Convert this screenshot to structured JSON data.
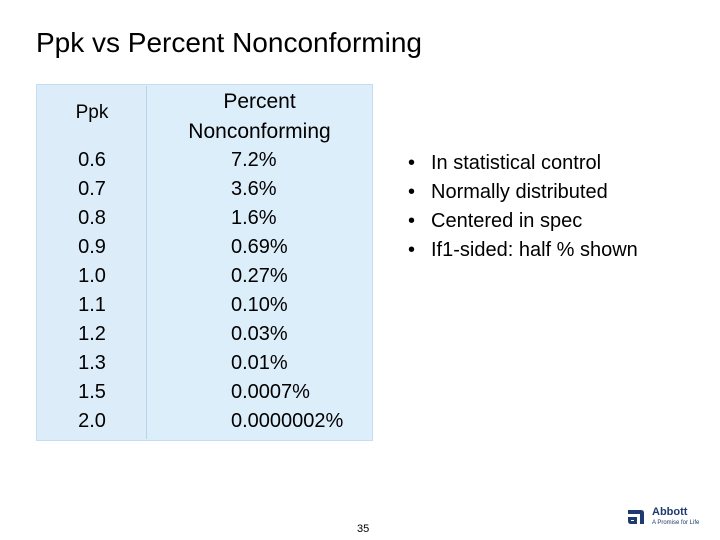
{
  "slide": {
    "title": "Ppk vs Percent Nonconforming",
    "page_number": "35"
  },
  "table": {
    "headers": {
      "ppk": "Ppk",
      "percent_line1": "Percent",
      "percent_line2": "Nonconforming"
    },
    "rows": [
      {
        "ppk": "0.6",
        "percent": "7.2%"
      },
      {
        "ppk": "0.7",
        "percent": "3.6%"
      },
      {
        "ppk": "0.8",
        "percent": "1.6%"
      },
      {
        "ppk": "0.9",
        "percent": "0.69%"
      },
      {
        "ppk": "1.0",
        "percent": "0.27%"
      },
      {
        "ppk": "1.1",
        "percent": "0.10%"
      },
      {
        "ppk": "1.2",
        "percent": "0.03%"
      },
      {
        "ppk": "1.3",
        "percent": "0.01%"
      },
      {
        "ppk": "1.5",
        "percent": "0.0007%"
      },
      {
        "ppk": "2.0",
        "percent": "0.0000002%"
      }
    ]
  },
  "bullets": [
    "In statistical control",
    "Normally distributed",
    "Centered in spec",
    "If1-sided: half % shown"
  ],
  "logo": {
    "name": "Abbott",
    "tagline": "A Promise for Life",
    "color": "#1e3a6e"
  }
}
